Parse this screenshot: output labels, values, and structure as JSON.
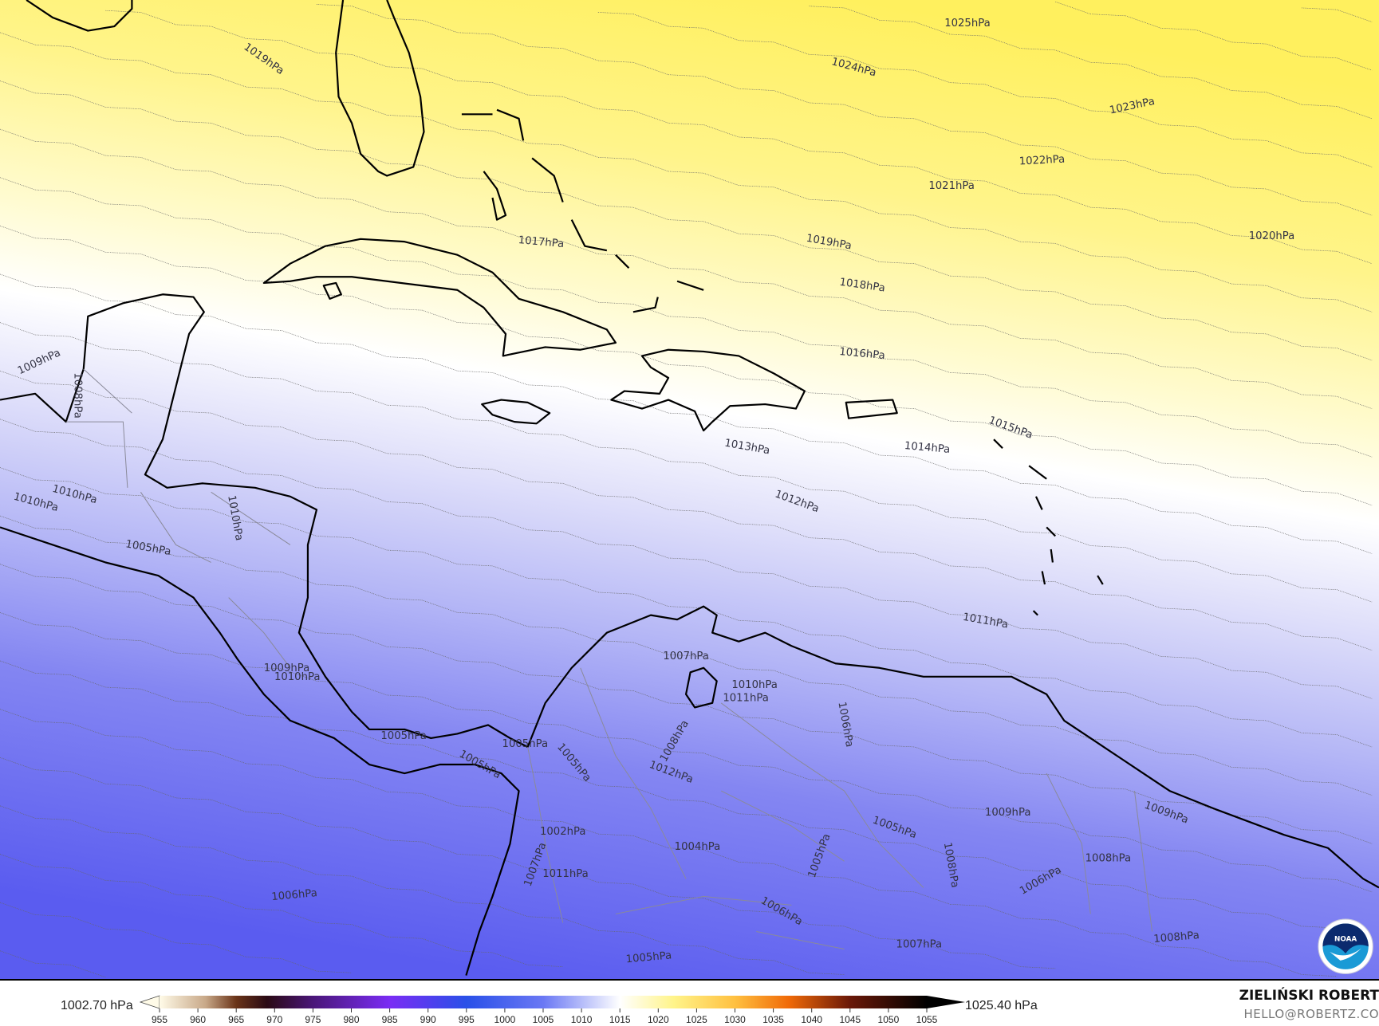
{
  "map": {
    "variable": "mean sea level pressure",
    "colors": {
      "high": "#fff06a",
      "neutral": "#ffffff",
      "low": "#5a5ef0",
      "coast": "#000000",
      "border": "#888888"
    },
    "isobar_labels": [
      "1025hPa",
      "1024hPa",
      "1023hPa",
      "1022hPa",
      "1021hPa",
      "1020hPa",
      "1019hPa",
      "1019hPa",
      "1018hPa",
      "1017hPa",
      "1016hPa",
      "1015hPa",
      "1014hPa",
      "1013hPa",
      "1012hPa",
      "1011hPa",
      "1009hPa",
      "1008hPa",
      "1010hPa",
      "1010hPa",
      "1010hPa",
      "1005hPa",
      "1009hPa",
      "1010hPa",
      "1005hPa",
      "1005hPa",
      "1005hPa",
      "1005hPa",
      "1007hPa",
      "1010hPa",
      "1011hPa",
      "1006hPa",
      "1008hPa",
      "1012hPa",
      "1004hPa",
      "1009hPa",
      "1009hPa",
      "1005hPa",
      "1008hPa",
      "1005hPa",
      "1008hPa",
      "1006hPa",
      "1005hPa",
      "1006hPa",
      "1007hPa",
      "1008hPa",
      "1006hPa",
      "1011hPa",
      "1007hPa",
      "1002hPa"
    ],
    "logo": "NOAA"
  },
  "colorbar": {
    "min_label": "1002.70 hPa",
    "max_label": "1025.40 hPa",
    "ticks": [
      "955",
      "960",
      "965",
      "970",
      "975",
      "980",
      "985",
      "990",
      "995",
      "1000",
      "1005",
      "1010",
      "1015",
      "1020",
      "1025",
      "1030",
      "1035",
      "1040",
      "1045",
      "1050",
      "1055"
    ]
  },
  "credit": {
    "author": "ZIELIŃSKI ROBERT",
    "email": "HELLO@ROBERTZ.CO"
  }
}
